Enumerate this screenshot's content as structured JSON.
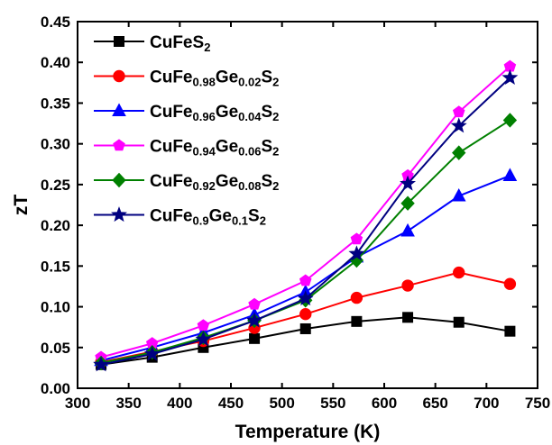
{
  "chart_data": {
    "type": "line",
    "xlabel": "Temperature (K)",
    "ylabel": "zT",
    "xlim": [
      300,
      750
    ],
    "ylim": [
      0.0,
      0.45
    ],
    "xticks": [
      300,
      350,
      400,
      450,
      500,
      550,
      600,
      650,
      700,
      750
    ],
    "yticks": [
      0.0,
      0.05,
      0.1,
      0.15,
      0.2,
      0.25,
      0.3,
      0.35,
      0.4,
      0.45
    ],
    "ytick_labels": [
      "0.00",
      "0.05",
      "0.10",
      "0.15",
      "0.20",
      "0.25",
      "0.30",
      "0.35",
      "0.40",
      "0.45"
    ],
    "grid": false,
    "legend_position": "top-left",
    "x": [
      323,
      373,
      423,
      473,
      523,
      573,
      623,
      673,
      723
    ],
    "series": [
      {
        "name_parts": [
          {
            "t": "CuFeS",
            "sub": false
          },
          {
            "t": "2",
            "sub": true
          }
        ],
        "color": "#000000",
        "marker": "square",
        "values": [
          0.029,
          0.038,
          0.05,
          0.061,
          0.073,
          0.082,
          0.087,
          0.081,
          0.07
        ]
      },
      {
        "name_parts": [
          {
            "t": "CuFe",
            "sub": false
          },
          {
            "t": "0.98",
            "sub": true
          },
          {
            "t": "Ge",
            "sub": false
          },
          {
            "t": "0.02",
            "sub": true
          },
          {
            "t": "S",
            "sub": false
          },
          {
            "t": "2",
            "sub": true
          }
        ],
        "color": "#ff0000",
        "marker": "circle",
        "values": [
          0.032,
          0.045,
          0.058,
          0.074,
          0.091,
          0.111,
          0.126,
          0.142,
          0.128
        ]
      },
      {
        "name_parts": [
          {
            "t": "CuFe",
            "sub": false
          },
          {
            "t": "0.96",
            "sub": true
          },
          {
            "t": "Ge",
            "sub": false
          },
          {
            "t": "0.04",
            "sub": true
          },
          {
            "t": "S",
            "sub": false
          },
          {
            "t": "2",
            "sub": true
          }
        ],
        "color": "#0000ff",
        "marker": "triangle",
        "values": [
          0.034,
          0.05,
          0.068,
          0.09,
          0.118,
          0.161,
          0.193,
          0.236,
          0.261
        ]
      },
      {
        "name_parts": [
          {
            "t": "CuFe",
            "sub": false
          },
          {
            "t": "0.94",
            "sub": true
          },
          {
            "t": "Ge",
            "sub": false
          },
          {
            "t": "0.06",
            "sub": true
          },
          {
            "t": "S",
            "sub": false
          },
          {
            "t": "2",
            "sub": true
          }
        ],
        "color": "#ff00ff",
        "marker": "pentagon",
        "values": [
          0.038,
          0.055,
          0.077,
          0.103,
          0.132,
          0.183,
          0.261,
          0.339,
          0.395
        ]
      },
      {
        "name_parts": [
          {
            "t": "CuFe",
            "sub": false
          },
          {
            "t": "0.92",
            "sub": true
          },
          {
            "t": "Ge",
            "sub": false
          },
          {
            "t": "0.08",
            "sub": true
          },
          {
            "t": "S",
            "sub": false
          },
          {
            "t": "2",
            "sub": true
          }
        ],
        "color": "#008000",
        "marker": "diamond",
        "values": [
          0.031,
          0.044,
          0.062,
          0.083,
          0.108,
          0.157,
          0.227,
          0.289,
          0.329
        ]
      },
      {
        "name_parts": [
          {
            "t": "CuFe",
            "sub": false
          },
          {
            "t": "0.9",
            "sub": true
          },
          {
            "t": "Ge",
            "sub": false
          },
          {
            "t": "0.1",
            "sub": true
          },
          {
            "t": "S",
            "sub": false
          },
          {
            "t": "2",
            "sub": true
          }
        ],
        "color": "#000080",
        "marker": "star",
        "values": [
          0.029,
          0.042,
          0.06,
          0.083,
          0.11,
          0.165,
          0.251,
          0.322,
          0.381
        ]
      }
    ]
  }
}
